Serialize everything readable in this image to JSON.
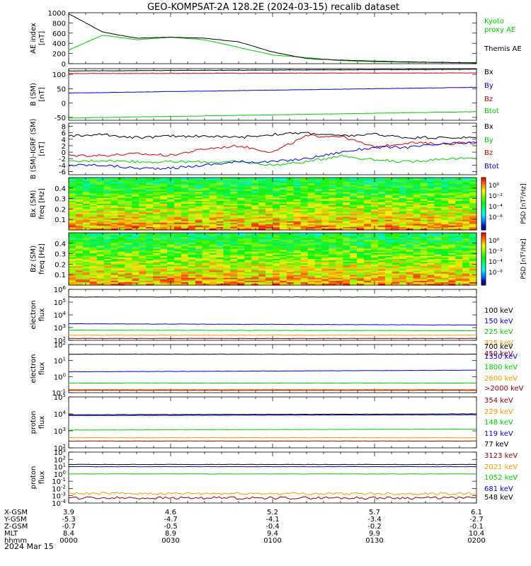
{
  "title": "GEO-KOMPSAT-2A 128.2E (2024-03-15) recalib dataset",
  "date_label": "2024 Mar 15",
  "colors": {
    "black": "#000000",
    "blue": "#0000dd",
    "green": "#00cc00",
    "red": "#cc0000",
    "orange": "#ff9900",
    "darkred": "#8b0000",
    "purple": "#660066"
  },
  "ephemeris": {
    "row_labels": [
      "X-GSM",
      "Y-GSM",
      "Z-GSM",
      "MLT",
      "hhmm"
    ],
    "columns": [
      [
        "3.9",
        "-5.3",
        "-0.7",
        "8.4",
        "0000"
      ],
      [
        "4.6",
        "-4.7",
        "-0.5",
        "8.9",
        "0030"
      ],
      [
        "5.2",
        "-4.1",
        "-0.4",
        "9.4",
        "0100"
      ],
      [
        "5.7",
        "-3.4",
        "-0.2",
        "9.9",
        "0130"
      ],
      [
        "6.1",
        "-2.7",
        "-0.1",
        "10.4",
        "0200"
      ]
    ]
  },
  "chart_data": [
    {
      "id": "ae",
      "type": "line",
      "ylabel": [
        "AE index",
        "[nT]"
      ],
      "ylim": [
        0,
        1000
      ],
      "yticks": [
        "1000",
        "800",
        "600",
        "400",
        "200",
        "0"
      ],
      "x": [
        0,
        10,
        20,
        30,
        40,
        50,
        60,
        70,
        80,
        90,
        100,
        110,
        120
      ],
      "series": [
        {
          "name": "Kyoto proxy AE",
          "color": "#00cc00",
          "values": [
            270,
            560,
            470,
            520,
            470,
            320,
            170,
            120,
            60,
            40,
            30,
            25,
            20
          ]
        },
        {
          "name": "Themis AE",
          "color": "#000000",
          "values": [
            980,
            620,
            500,
            520,
            500,
            430,
            230,
            100,
            70,
            50,
            35,
            25,
            15
          ]
        }
      ],
      "legend": [
        "Kyoto",
        "proxy AE",
        "",
        "Themis AE"
      ]
    },
    {
      "id": "bsm",
      "type": "line",
      "ylabel": [
        "B (SM)",
        "[nT]"
      ],
      "ylim": [
        -60,
        120
      ],
      "yticks": [
        "100",
        "50",
        "0",
        "-50"
      ],
      "x": [
        0,
        120
      ],
      "series": [
        {
          "name": "Bx",
          "color": "#000000",
          "values": [
            112,
            118
          ]
        },
        {
          "name": "Bz",
          "color": "#cc0000",
          "values": [
            103,
            105
          ]
        },
        {
          "name": "By",
          "color": "#0000dd",
          "values": [
            35,
            55
          ]
        },
        {
          "name": "Btot",
          "color": "#00cc00",
          "values": [
            -52,
            -30
          ]
        }
      ],
      "legend": [
        "Bx",
        "By",
        "Bz",
        "Btot"
      ]
    },
    {
      "id": "bdiff",
      "type": "line",
      "ylabel": [
        "B (SM)-IGRF (SM)",
        "[nT]"
      ],
      "ylim": [
        -7,
        9
      ],
      "yticks": [
        "8",
        "6",
        "4",
        "2",
        "0",
        "-2",
        "-4",
        "-6"
      ],
      "x": [
        0,
        10,
        20,
        30,
        40,
        50,
        60,
        70,
        80,
        90,
        100,
        110,
        120
      ],
      "series": [
        {
          "name": "Bx",
          "color": "#000000",
          "values": [
            5,
            5.5,
            4.5,
            5,
            5,
            4.5,
            5.5,
            6,
            5,
            5.5,
            4.5,
            4.5,
            4.5
          ]
        },
        {
          "name": "Bz",
          "color": "#cc0000",
          "values": [
            -1,
            -1,
            -0.5,
            -1,
            1,
            2,
            0,
            5,
            5,
            1.5,
            3,
            2.5,
            3
          ]
        },
        {
          "name": "By",
          "color": "#00cc00",
          "values": [
            -3,
            -2.5,
            -3,
            -3,
            -3,
            -3,
            -4,
            -3,
            -1,
            -2.5,
            -3,
            -2,
            -2
          ]
        },
        {
          "name": "Btot",
          "color": "#0000dd",
          "values": [
            -4,
            -4,
            -5,
            -5,
            -4,
            -3,
            -3,
            -2,
            0,
            1.5,
            1.5,
            2.5,
            3
          ]
        }
      ],
      "legend": [
        "Bx",
        "By",
        "Bz",
        "Btot"
      ]
    },
    {
      "id": "bx_spec",
      "type": "heatmap",
      "ylabel": [
        "Bx (SM)",
        "freq [Hz]"
      ],
      "ylim": [
        0,
        0.5
      ],
      "yticks": [
        "0.4",
        "0.3",
        "0.2",
        "0.1"
      ],
      "colorbar_label": "PSD [nT²/Hz]",
      "colorbar_ticks": [
        "10⁰",
        "10⁻²",
        "10⁻⁴",
        "10⁻⁶"
      ]
    },
    {
      "id": "bz_spec",
      "type": "heatmap",
      "ylabel": [
        "Bz (SM)",
        "freq [Hz]"
      ],
      "ylim": [
        0,
        0.5
      ],
      "yticks": [
        "0.4",
        "0.3",
        "0.2",
        "0.1"
      ],
      "colorbar_label": "PSD [nT²/Hz]",
      "colorbar_ticks": [
        "10⁰",
        "10⁻²",
        "10⁻⁴",
        "10⁻⁶"
      ]
    },
    {
      "id": "e1",
      "type": "line",
      "ylabel": [
        "electron",
        "flux"
      ],
      "log": true,
      "ylim_exp": [
        2,
        6
      ],
      "yticks_exp": [
        2,
        3,
        4,
        5,
        6
      ],
      "x": [
        0,
        120
      ],
      "series": [
        {
          "name": "100 keV",
          "color": "#000000",
          "values": [
            5.4,
            5.4
          ]
        },
        {
          "name": "150 keV",
          "color": "#0000dd",
          "values": [
            3.3,
            3.2
          ]
        },
        {
          "name": "225 keV",
          "color": "#00cc00",
          "values": [
            2.8,
            2.75
          ]
        },
        {
          "name": "325 keV",
          "color": "#ff9900",
          "values": [
            2.4,
            2.4
          ]
        },
        {
          "name": "450 keV",
          "color": "#8b0000",
          "values": [
            2.15,
            2.15
          ]
        }
      ],
      "legend": [
        "100 keV",
        "150 keV",
        "225 keV",
        "325 keV",
        "450 keV"
      ]
    },
    {
      "id": "e2",
      "type": "line",
      "ylabel": [
        "electron",
        "flux"
      ],
      "log": true,
      "ylim_exp": [
        -1,
        2
      ],
      "yticks_exp": [
        -1,
        0,
        1,
        2
      ],
      "x": [
        0,
        120
      ],
      "series": [
        {
          "name": "700 keV",
          "color": "#000000",
          "values": [
            1.4,
            1.4
          ]
        },
        {
          "name": "1350 keV",
          "color": "#0000dd",
          "values": [
            0.3,
            0.4
          ]
        },
        {
          "name": "1800 keV",
          "color": "#00cc00",
          "values": [
            -0.4,
            -0.4
          ]
        },
        {
          "name": "2600 keV",
          "color": "#ff9900",
          "values": [
            -0.8,
            -0.8
          ]
        },
        {
          "name": ">2000 keV",
          "color": "#8b0000",
          "values": [
            -0.85,
            -0.85
          ]
        }
      ],
      "legend": [
        "700 keV",
        "1350 keV",
        "1800 keV",
        "2600 keV",
        ">2000 keV"
      ]
    },
    {
      "id": "p1",
      "type": "line",
      "ylabel": [
        "proton",
        "flux"
      ],
      "log": true,
      "ylim_exp": [
        2,
        5
      ],
      "yticks_exp": [
        2,
        3,
        4,
        5
      ],
      "x": [
        0,
        120
      ],
      "series": [
        {
          "name": "354 keV",
          "color": "#8b0000",
          "values": [
            2.4,
            2.4
          ]
        },
        {
          "name": "229 keV",
          "color": "#ff9900",
          "values": [
            2.6,
            2.6
          ]
        },
        {
          "name": "148 keV",
          "color": "#00cc00",
          "values": [
            3.05,
            3.1
          ]
        },
        {
          "name": "119 keV",
          "color": "#0000dd",
          "values": [
            3.9,
            3.95
          ]
        },
        {
          "name": "77 keV",
          "color": "#000000",
          "values": [
            3.95,
            4.0
          ]
        }
      ],
      "legend": [
        "354 keV",
        "229 keV",
        "148 keV",
        "119 keV",
        "77 keV"
      ]
    },
    {
      "id": "p2",
      "type": "line",
      "ylabel": [
        "proton",
        "flux"
      ],
      "log": true,
      "ylim_exp": [
        -4,
        3
      ],
      "yticks_exp": [
        -4,
        -3,
        -2,
        -1,
        0,
        1,
        2,
        3
      ],
      "x": [
        0,
        120
      ],
      "series": [
        {
          "name": "548 keV",
          "color": "#000000",
          "values": [
            1.3,
            1.3
          ]
        },
        {
          "name": "681 keV",
          "color": "#0000dd",
          "values": [
            1.0,
            1.0
          ]
        },
        {
          "name": "1052 keV",
          "color": "#00cc00",
          "values": [
            0.0,
            0.0
          ]
        },
        {
          "name": "2021 keV",
          "color": "#ff9900",
          "values": [
            -2.7,
            -2.7
          ]
        },
        {
          "name": "3123 keV",
          "color": "#8b0000",
          "values": [
            -3.3,
            -3.3
          ]
        }
      ],
      "legend": [
        "3123 keV",
        "2021 keV",
        "1052 keV",
        "681 keV",
        "548 keV"
      ]
    }
  ]
}
